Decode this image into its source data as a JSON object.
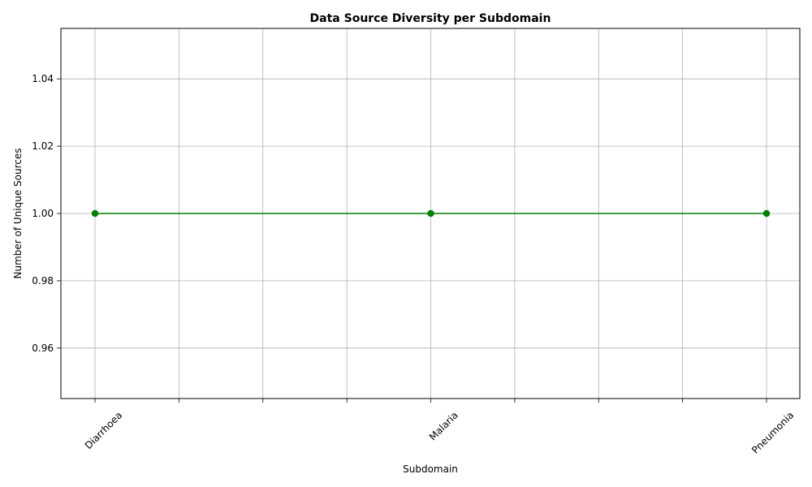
{
  "chart_data": {
    "type": "line",
    "title": "Data Source Diversity per Subdomain",
    "xlabel": "Subdomain",
    "ylabel": "Number of Unique Sources",
    "categories": [
      "Diarrhoea",
      "Malaria",
      "Pneumonia"
    ],
    "series": [
      {
        "values": [
          1.0,
          1.0,
          1.0
        ],
        "color": "#008000",
        "marker": "circle"
      }
    ],
    "x_tick_count": 9,
    "ylim": [
      0.945,
      1.055
    ],
    "yticks": [
      0.96,
      0.98,
      1.0,
      1.02,
      1.04
    ],
    "ytick_labels": [
      "0.96",
      "0.98",
      "1.00",
      "1.02",
      "1.04"
    ],
    "grid": true,
    "legend": "none"
  }
}
